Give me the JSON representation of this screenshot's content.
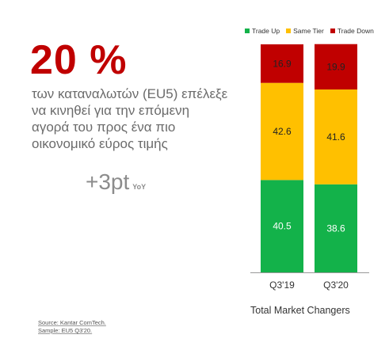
{
  "headline": {
    "big_stat": "20 %",
    "description": "των καταναλωτών (EU5) επέλεξε να κινηθεί για την επόμενη αγορά του προς ένα πιο οικονομικό εύρος τιμής",
    "delta": "+3pt",
    "delta_unit": "YoY"
  },
  "source": {
    "line1": "Source: Kantar ComTech.",
    "line2": "Sample: EU5 Q3'20."
  },
  "chart_data": {
    "type": "bar",
    "stacked": true,
    "title": "Total Market Changers",
    "categories": [
      "Q3'19",
      "Q3'20"
    ],
    "series": [
      {
        "name": "Trade Up",
        "values": [
          40.5,
          38.6
        ],
        "color": "#13b24a"
      },
      {
        "name": "Same Tier",
        "values": [
          42.6,
          41.6
        ],
        "color": "#ffc000"
      },
      {
        "name": "Trade Down",
        "values": [
          16.9,
          19.9
        ],
        "color": "#c00000"
      }
    ],
    "legend_position": "top",
    "grid": false,
    "ylim": [
      0,
      100
    ]
  },
  "colors": {
    "accent": "#c00000",
    "axis": "#999999"
  }
}
